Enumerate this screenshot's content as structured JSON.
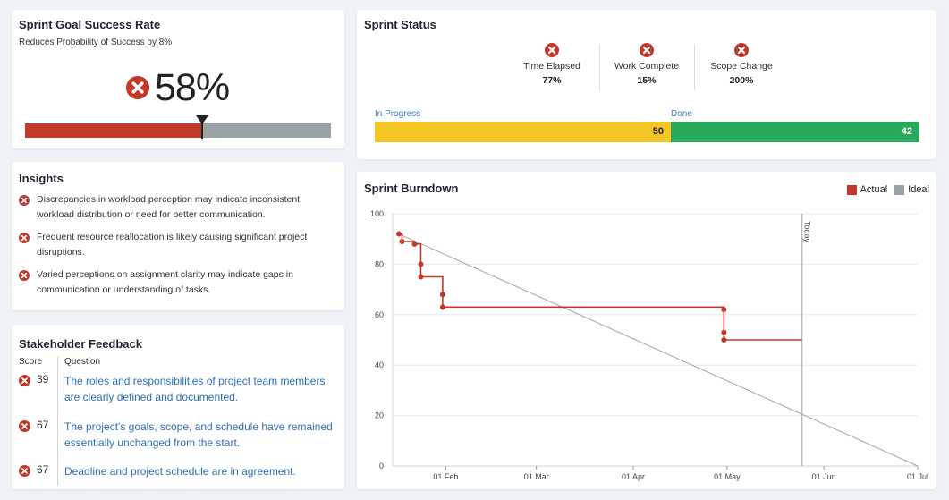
{
  "colors": {
    "red": "#c0392b",
    "gray": "#97a3a6",
    "yellow": "#f3c623",
    "green": "#27a85a",
    "link": "#2f6fb8"
  },
  "goal": {
    "title": "Sprint Goal Success Rate",
    "subtitle": "Reduces Probability of Success by 8%",
    "value": "58%",
    "progress_fraction": 0.58,
    "icon": "x-circle-icon"
  },
  "insights": {
    "title": "Insights",
    "items": [
      "Discrepancies in workload perception may indicate inconsistent workload distribution or need for better communication.",
      "Frequent resource reallocation is likely causing significant project disruptions.",
      "Varied perceptions on assignment clarity may indicate gaps in communication or understanding of tasks."
    ]
  },
  "feedback": {
    "title": "Stakeholder Feedback",
    "score_header": "Score",
    "question_header": "Question",
    "rows": [
      {
        "score": "39",
        "question": "The roles and responsibilities of project team members are clearly defined and documented."
      },
      {
        "score": "67",
        "question": "The project's goals, scope, and schedule have remained essentially unchanged from the start."
      },
      {
        "score": "67",
        "question": "Deadline and project schedule are in agreement."
      }
    ]
  },
  "status": {
    "title": "Sprint Status",
    "metrics": [
      {
        "label": "Time Elapsed",
        "value": "77%"
      },
      {
        "label": "Work Complete",
        "value": "15%"
      },
      {
        "label": "Scope Change",
        "value": "200%"
      }
    ],
    "in_progress_label": "In Progress",
    "in_progress_value": "50",
    "done_label": "Done",
    "done_value": "42"
  },
  "burndown": {
    "title": "Sprint Burndown",
    "legend_actual": "Actual",
    "legend_ideal": "Ideal",
    "today_label": "Today"
  },
  "chart_data": {
    "type": "line",
    "title": "Sprint Burndown",
    "xlabel": "",
    "ylabel": "",
    "ylim": [
      0,
      100
    ],
    "yticks": [
      0,
      20,
      40,
      60,
      80,
      100
    ],
    "xlim": [
      "2024-01-15",
      "2024-07-01"
    ],
    "xticks": [
      {
        "date": "2024-02-01",
        "label": "01 Feb"
      },
      {
        "date": "2024-03-01",
        "label": "01 Mar"
      },
      {
        "date": "2024-04-01",
        "label": "01 Apr"
      },
      {
        "date": "2024-05-01",
        "label": "01 May"
      },
      {
        "date": "2024-06-01",
        "label": "01 Jun"
      },
      {
        "date": "2024-07-01",
        "label": "01 Jul"
      }
    ],
    "today": "2024-05-25",
    "legend": "top-right",
    "grid": true,
    "series": [
      {
        "name": "Actual",
        "color": "#c0392b",
        "step": true,
        "points": [
          {
            "x": "2024-01-17",
            "y": 92
          },
          {
            "x": "2024-01-18",
            "y": 89
          },
          {
            "x": "2024-01-22",
            "y": 88
          },
          {
            "x": "2024-01-24",
            "y": 80
          },
          {
            "x": "2024-01-24",
            "y": 75
          },
          {
            "x": "2024-01-31",
            "y": 68
          },
          {
            "x": "2024-01-31",
            "y": 63
          },
          {
            "x": "2024-04-30",
            "y": 62
          },
          {
            "x": "2024-04-30",
            "y": 53
          },
          {
            "x": "2024-04-30",
            "y": 50
          }
        ],
        "end": {
          "x": "2024-05-25",
          "y": 50
        }
      },
      {
        "name": "Ideal",
        "color": "#97a3a6",
        "points": [
          {
            "x": "2024-01-17",
            "y": 92
          },
          {
            "x": "2024-07-01",
            "y": 0
          }
        ]
      }
    ]
  }
}
